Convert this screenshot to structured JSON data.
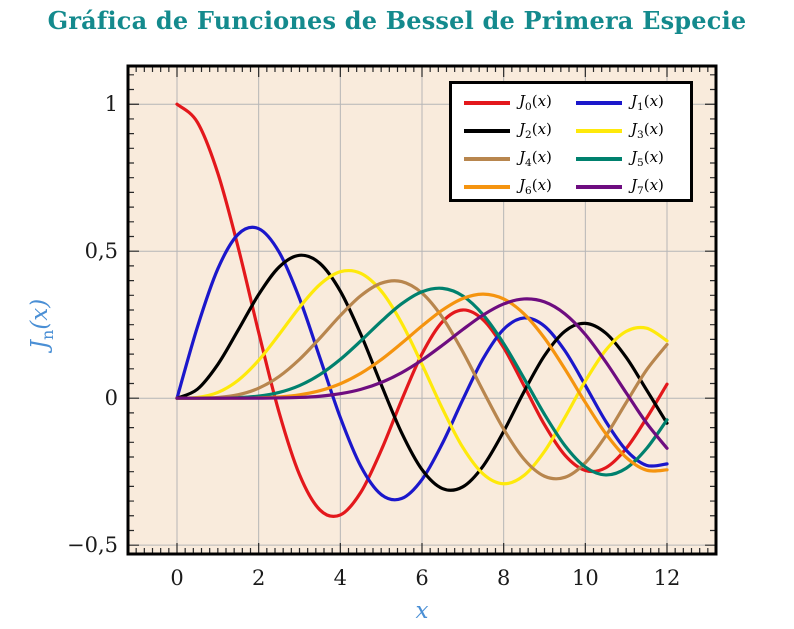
{
  "page": {
    "background": "#ffffff"
  },
  "chart_data": {
    "type": "line",
    "title": "Gráfica de Funciones de Bessel de Primera Especie",
    "title_color": "#148a8d",
    "xlabel": "x",
    "ylabel": "J_n(x)",
    "axis_label_color": "#4a8fd5",
    "plot_bg": "#f9ebdc",
    "grid": "major-on",
    "grid_color": "#b6b6b6",
    "frame_color": "#000000",
    "tick_color": "#2a2a2a",
    "legend_position": "top-right",
    "xlim": [
      -1.2,
      13.2
    ],
    "ylim": [
      -0.53,
      1.13
    ],
    "x_minor_step": 0.2,
    "y_minor_step": 0.05,
    "x_ticks": {
      "values": [
        0,
        2,
        4,
        6,
        8,
        10,
        12
      ],
      "labels": [
        "0",
        "2",
        "4",
        "6",
        "8",
        "10",
        "12"
      ]
    },
    "y_ticks": {
      "values": [
        1,
        0.5,
        0,
        -0.5
      ],
      "labels": [
        "1",
        "0,5",
        "0",
        "−0,5"
      ]
    },
    "x": [
      0,
      0.5,
      1,
      1.5,
      2,
      2.5,
      3,
      3.5,
      4,
      4.5,
      5,
      5.5,
      6,
      6.5,
      7,
      7.5,
      8,
      8.5,
      9,
      9.5,
      10,
      10.5,
      11,
      11.5,
      12
    ],
    "series": [
      {
        "label": "J_0(x)",
        "color": "#e3181c",
        "values": [
          1.0,
          0.9385,
          0.7652,
          0.5118,
          0.2239,
          -0.0484,
          -0.2601,
          -0.3801,
          -0.3971,
          -0.3205,
          -0.1776,
          -0.0068,
          0.1506,
          0.2601,
          0.3001,
          0.2663,
          0.1717,
          0.0419,
          -0.0903,
          -0.1939,
          -0.2459,
          -0.2366,
          -0.1712,
          -0.0677,
          0.0477
        ]
      },
      {
        "label": "J_1(x)",
        "color": "#1b17cb",
        "values": [
          0,
          0.2423,
          0.4401,
          0.5579,
          0.5767,
          0.4971,
          0.3391,
          0.1374,
          -0.066,
          -0.2311,
          -0.3276,
          -0.3414,
          -0.2767,
          -0.1538,
          -0.0047,
          0.1352,
          0.2346,
          0.2731,
          0.2453,
          0.1613,
          0.0435,
          -0.0789,
          -0.1768,
          -0.2284,
          -0.2234
        ]
      },
      {
        "label": "J_2(x)",
        "color": "#000000",
        "values": [
          0,
          0.0306,
          0.1149,
          0.2321,
          0.3528,
          0.4461,
          0.4861,
          0.4586,
          0.3641,
          0.2178,
          0.0466,
          -0.1173,
          -0.2429,
          -0.3074,
          -0.3014,
          -0.2303,
          -0.113,
          0.0223,
          0.1448,
          0.2279,
          0.2546,
          0.2216,
          0.139,
          0.028,
          -0.0849
        ]
      },
      {
        "label": "J_3(x)",
        "color": "#fee90b",
        "values": [
          0,
          0.0026,
          0.0196,
          0.061,
          0.1289,
          0.2166,
          0.3091,
          0.3868,
          0.4302,
          0.4247,
          0.3648,
          0.2561,
          0.1148,
          -0.0353,
          -0.1676,
          -0.2581,
          -0.2911,
          -0.2626,
          -0.1809,
          -0.0653,
          0.0584,
          0.1633,
          0.2273,
          0.2381,
          0.1951
        ]
      },
      {
        "label": "J_4(x)",
        "color": "#b8864e",
        "values": [
          0,
          0.0002,
          0.0025,
          0.0118,
          0.034,
          0.0738,
          0.132,
          0.2044,
          0.2811,
          0.3484,
          0.3912,
          0.3967,
          0.3576,
          0.2748,
          0.1578,
          0.0238,
          -0.1054,
          -0.2077,
          -0.2655,
          -0.2692,
          -0.2196,
          -0.1283,
          -0.015,
          0.0962,
          0.1825
        ]
      },
      {
        "label": "J_5(x)",
        "color": "#00816e",
        "values": [
          0,
          0,
          0.0002,
          0.0018,
          0.007,
          0.0195,
          0.043,
          0.0804,
          0.1321,
          0.1947,
          0.2611,
          0.3209,
          0.3621,
          0.3736,
          0.3479,
          0.2833,
          0.1858,
          0.0671,
          -0.055,
          -0.1613,
          -0.2341,
          -0.2611,
          -0.2383,
          -0.1711,
          -0.0735
        ]
      },
      {
        "label": "J_6(x)",
        "color": "#f5940f",
        "values": [
          0,
          0,
          0,
          0.0002,
          0.0012,
          0.0042,
          0.0114,
          0.0254,
          0.0491,
          0.0843,
          0.131,
          0.1868,
          0.2458,
          0.2999,
          0.3392,
          0.3541,
          0.3376,
          0.2867,
          0.2043,
          0.0993,
          -0.0145,
          -0.1204,
          -0.2016,
          -0.245,
          -0.2437
        ]
      },
      {
        "label": "J_7(x)",
        "color": "#6e0d80",
        "values": [
          0,
          0,
          0,
          0,
          0.0002,
          0.0008,
          0.0025,
          0.0067,
          0.0152,
          0.03,
          0.0534,
          0.0866,
          0.1296,
          0.1801,
          0.2336,
          0.2832,
          0.3206,
          0.3376,
          0.3275,
          0.2868,
          0.2167,
          0.1235,
          0.0184,
          -0.0846,
          -0.1703
        ]
      }
    ]
  }
}
